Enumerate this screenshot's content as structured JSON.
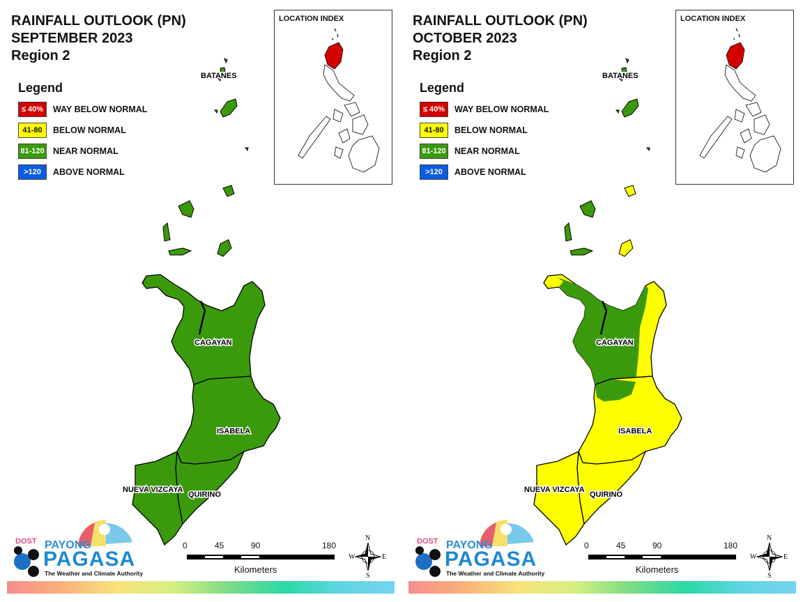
{
  "colors": {
    "way_below": "#d40000",
    "below": "#ffff00",
    "near": "#3a9a0c",
    "above": "#0a5ce0",
    "outline": "#000000"
  },
  "legend": {
    "title": "Legend",
    "items": [
      {
        "range": "≤ 40%",
        "label": "WAY BELOW NORMAL",
        "color": "#d40000",
        "text_color": "#ffffff"
      },
      {
        "range": "41-80",
        "label": "BELOW NORMAL",
        "color": "#ffff00",
        "text_color": "#111111"
      },
      {
        "range": "81-120",
        "label": "NEAR NORMAL",
        "color": "#3a9a0c",
        "text_color": "#ffffff"
      },
      {
        "range": ">120",
        "label": "ABOVE NORMAL",
        "color": "#0a5ce0",
        "text_color": "#ffffff"
      }
    ]
  },
  "location_index": {
    "title": "LOCATION INDEX",
    "highlight_color": "#d40000"
  },
  "province_labels": {
    "batanes": "BATANES",
    "cagayan": "CAGAYAN",
    "isabela": "ISABELA",
    "nueva_vizcaya": "NUEVA VIZCAYA",
    "quirino": "QUIRINO"
  },
  "scale": {
    "ticks": [
      "0",
      "45",
      "90",
      "180"
    ],
    "unit": "Kilometers"
  },
  "compass": {
    "n": "N",
    "s": "S",
    "e": "E",
    "w": "W"
  },
  "logo": {
    "dost": "DOST",
    "payong": "PAYONG",
    "pagasa": "PAGASA",
    "tagline": "The Weather and Climate Authority"
  },
  "panels": {
    "left": {
      "title_line1": "RAINFALL OUTLOOK (PN)",
      "title_line2": "SEPTEMBER 2023",
      "title_line3": "Region 2",
      "classification": "Near Normal across all provinces"
    },
    "right": {
      "title_line1": "RAINFALL OUTLOOK (PN)",
      "title_line2": "OCTOBER 2023",
      "title_line3": "Region 2",
      "classification": "Below Normal over most of the region; Near Normal over western/central Cagayan and parts of Batanes"
    }
  }
}
